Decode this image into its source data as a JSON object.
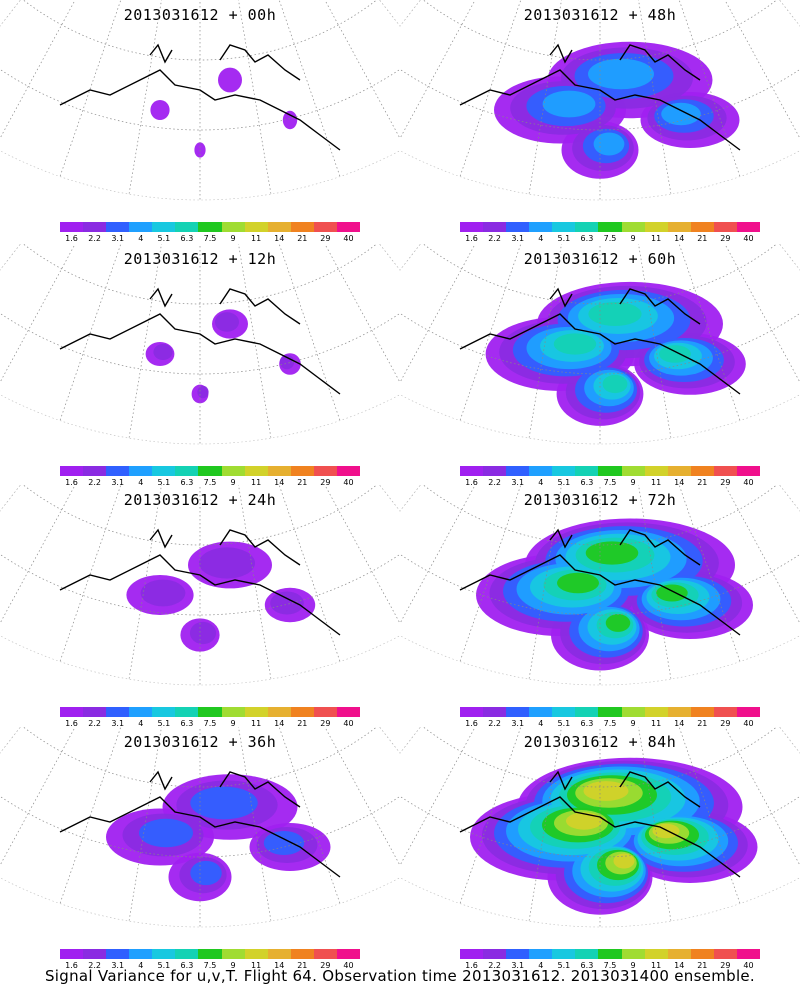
{
  "caption": "Signal Variance for u,v,T. Flight 64. Observation time 2013031612. 2013031400 ensemble.",
  "colorbar": {
    "colors": [
      "#a020f0",
      "#8a2be2",
      "#3060ff",
      "#1fa0ff",
      "#18c8e0",
      "#14d2b4",
      "#20c820",
      "#a0dc32",
      "#d2d22a",
      "#e6b030",
      "#f08220",
      "#f05050",
      "#f0108c"
    ],
    "tick_labels": [
      "1.6",
      "2.2",
      "3.1",
      "4",
      "5.1",
      "6.3",
      "7.5",
      "9",
      "11",
      "14",
      "21",
      "29",
      "40"
    ]
  },
  "panels": [
    {
      "title": "2013031612 + 00h",
      "coverage": 0.08,
      "level": 0
    },
    {
      "title": "2013031612 + 48h",
      "coverage": 0.55,
      "level": 3
    },
    {
      "title": "2013031612 + 12h",
      "coverage": 0.12,
      "level": 1
    },
    {
      "title": "2013031612 + 60h",
      "coverage": 0.62,
      "level": 5
    },
    {
      "title": "2013031612 + 24h",
      "coverage": 0.28,
      "level": 1
    },
    {
      "title": "2013031612 + 72h",
      "coverage": 0.7,
      "level": 6
    },
    {
      "title": "2013031612 + 36h",
      "coverage": 0.45,
      "level": 2
    },
    {
      "title": "2013031612 + 84h",
      "coverage": 0.75,
      "level": 8
    }
  ]
}
